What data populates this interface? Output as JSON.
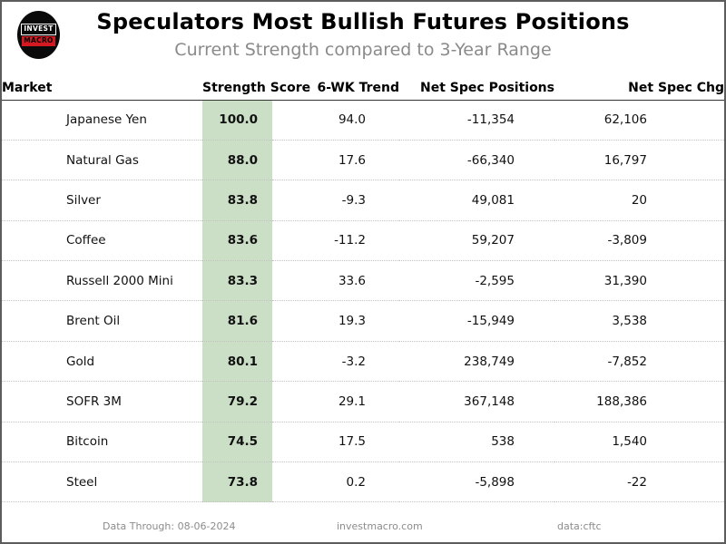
{
  "header": {
    "title": "Speculators Most Bullish Futures Positions",
    "subtitle": "Current Strength compared to 3-Year Range",
    "logo": {
      "line1": "INVEST",
      "line2": "MACRO"
    }
  },
  "chart_data": {
    "type": "table",
    "title": "Speculators Most Bullish Futures Positions",
    "subtitle": "Current Strength compared to 3-Year Range",
    "columns": [
      "Market",
      "Strength Score",
      "6-WK Trend",
      "Net Spec Positions",
      "Net Spec Chg"
    ],
    "rows": [
      {
        "market": "Japanese Yen",
        "score": "100.0",
        "trend": "94.0",
        "netpos": "-11,354",
        "chg": "62,106"
      },
      {
        "market": "Natural Gas",
        "score": "88.0",
        "trend": "17.6",
        "netpos": "-66,340",
        "chg": "16,797"
      },
      {
        "market": "Silver",
        "score": "83.8",
        "trend": "-9.3",
        "netpos": "49,081",
        "chg": "20"
      },
      {
        "market": "Coffee",
        "score": "83.6",
        "trend": "-11.2",
        "netpos": "59,207",
        "chg": "-3,809"
      },
      {
        "market": "Russell 2000 Mini",
        "score": "83.3",
        "trend": "33.6",
        "netpos": "-2,595",
        "chg": "31,390"
      },
      {
        "market": "Brent Oil",
        "score": "81.6",
        "trend": "19.3",
        "netpos": "-15,949",
        "chg": "3,538"
      },
      {
        "market": "Gold",
        "score": "80.1",
        "trend": "-3.2",
        "netpos": "238,749",
        "chg": "-7,852"
      },
      {
        "market": "SOFR 3M",
        "score": "79.2",
        "trend": "29.1",
        "netpos": "367,148",
        "chg": "188,386"
      },
      {
        "market": "Bitcoin",
        "score": "74.5",
        "trend": "17.5",
        "netpos": "538",
        "chg": "1,540"
      },
      {
        "market": "Steel",
        "score": "73.8",
        "trend": "0.2",
        "netpos": "-5,898",
        "chg": "-22"
      }
    ],
    "layout": {
      "score_column_highlighted": true,
      "row_separator": "dotted"
    }
  },
  "footer": {
    "data_through": "Data Through: 08-06-2024",
    "website": "investmacro.com",
    "source": "data:cftc"
  },
  "colors": {
    "score_band_green": "#cbdfc7",
    "logo_red": "#d41920",
    "subtitle_gray": "#8a8a8a",
    "footer_gray": "#8c8c8c",
    "frame_border": "#5c5c5c"
  }
}
